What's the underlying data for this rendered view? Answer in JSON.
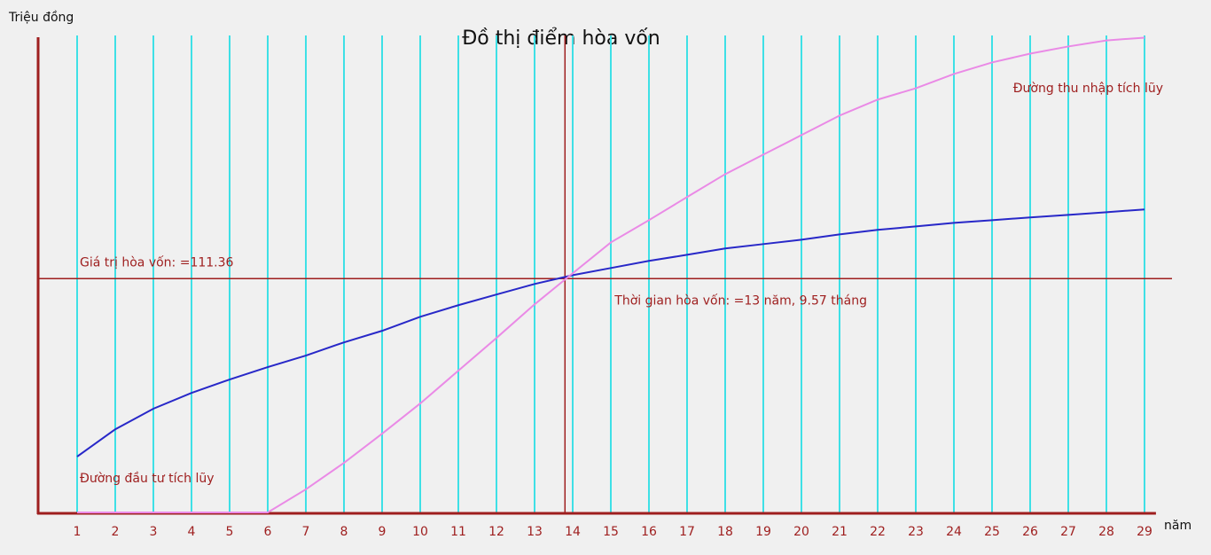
{
  "chart_data": {
    "type": "line",
    "title": "Đồ thị điểm hòa vốn",
    "y_label": "Triệu đồng",
    "x_label": "năm",
    "x": [
      1,
      2,
      3,
      4,
      5,
      6,
      7,
      8,
      9,
      10,
      11,
      12,
      13,
      14,
      15,
      16,
      17,
      18,
      19,
      20,
      21,
      22,
      23,
      24,
      25,
      26,
      27,
      28,
      29
    ],
    "xlim": [
      0,
      29.3
    ],
    "xticks": [
      1,
      2,
      3,
      4,
      5,
      6,
      7,
      8,
      9,
      10,
      11,
      12,
      13,
      14,
      15,
      16,
      17,
      18,
      19,
      20,
      21,
      22,
      23,
      24,
      25,
      26,
      27,
      28,
      29
    ],
    "ylim": [
      0,
      228
    ],
    "grid": true,
    "grid_color": "#3ee0e6",
    "axis_color": "#9e1e1e",
    "series": [
      {
        "name": "Đường đầu tư tích lũy",
        "color": "#2828c8",
        "values": [
          26.6,
          39.6,
          49.4,
          56.9,
          63.3,
          69.2,
          74.7,
          81.0,
          86.5,
          93.2,
          98.7,
          103.8,
          108.8,
          113.0,
          116.4,
          119.8,
          122.7,
          125.7,
          127.8,
          129.9,
          132.4,
          134.6,
          136.2,
          137.9,
          139.2,
          140.5,
          141.7,
          143.0,
          144.3
        ]
      },
      {
        "name": "Đường thu nhập tích lũy",
        "color": "#ea8ae6",
        "values": [
          0,
          0,
          0,
          0,
          0,
          0,
          11.0,
          23.6,
          37.5,
          51.9,
          67.5,
          83.1,
          99.1,
          113.9,
          128.6,
          139.2,
          150.2,
          161.1,
          170.4,
          179.7,
          189.0,
          196.6,
          202.0,
          208.8,
          214.3,
          218.5,
          221.9,
          224.8,
          226.1
        ]
      }
    ],
    "hlines": [
      {
        "value": 111.36,
        "label": "Giá trị hòa vốn: =111.36"
      }
    ],
    "vlines": [
      {
        "value": 13.7975,
        "label": "Thời gian hòa vốn: =13 năm, 9.57 tháng"
      }
    ]
  }
}
